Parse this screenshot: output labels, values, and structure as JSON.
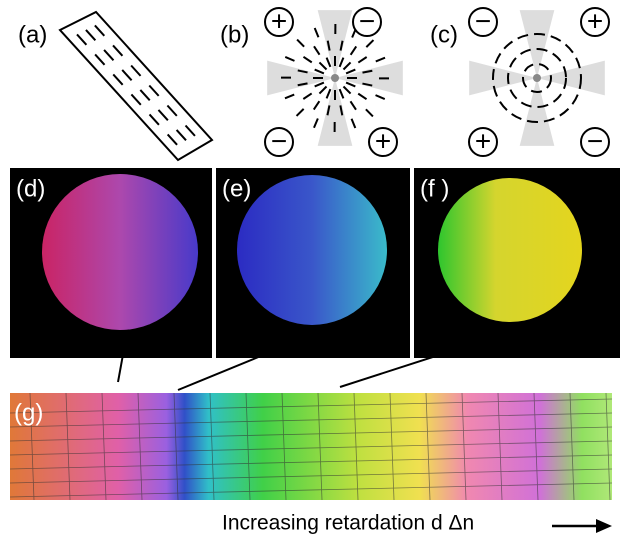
{
  "panels": {
    "a": "(a)",
    "b": "(b)",
    "c": "(c)",
    "d": "(d)",
    "e": "(e)",
    "f": "(f )",
    "g": "(g)"
  },
  "signs_b": [
    "+",
    "−",
    "−",
    "+"
  ],
  "signs_c": [
    "−",
    "+",
    "+",
    "−"
  ],
  "caption": "Increasing retardation  d Δn"
}
